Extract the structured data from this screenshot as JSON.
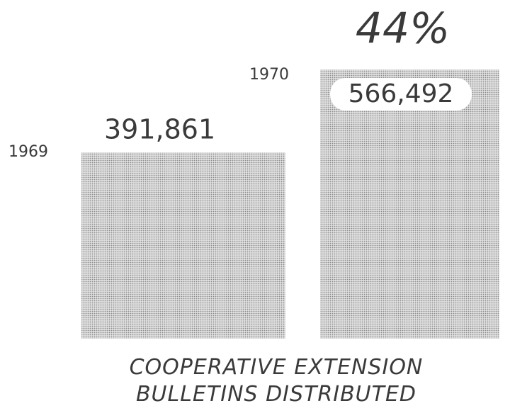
{
  "chart_data": {
    "type": "bar",
    "title": "COOPERATIVE EXTENSION BULLETINS DISTRIBUTED",
    "categories": [
      "1969",
      "1970"
    ],
    "values": [
      391861,
      566492
    ],
    "value_labels": [
      "391,861",
      "566,492"
    ],
    "annotations": [
      "44%"
    ],
    "color": "#c4c4c4"
  }
}
